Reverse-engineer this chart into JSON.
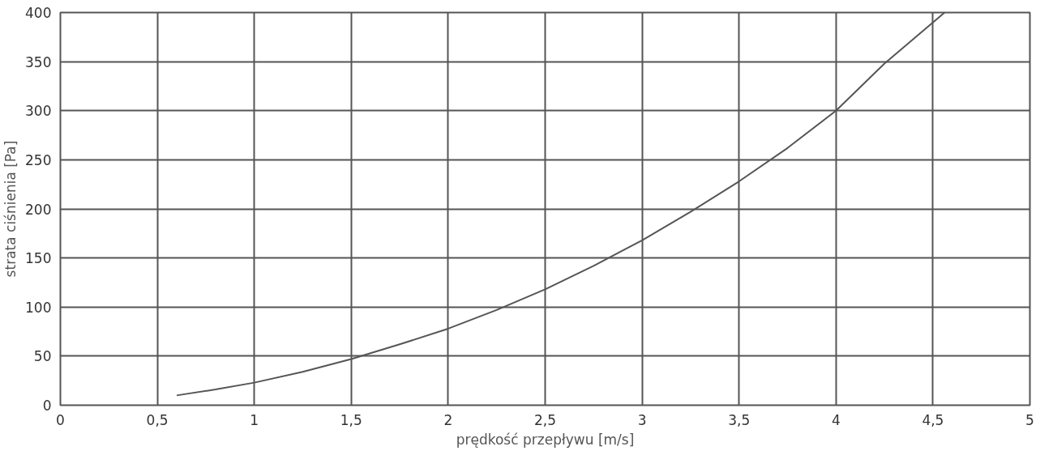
{
  "chart_data": {
    "type": "line",
    "xlabel": "prędkość przepływu [m/s]",
    "ylabel": "strata ciśnienia [Pa]",
    "x": [
      0.6,
      0.8,
      1,
      1.25,
      1.5,
      1.75,
      2,
      2.25,
      2.5,
      2.75,
      3,
      3.25,
      3.5,
      3.75,
      4,
      4.25,
      4.56
    ],
    "series": [
      {
        "color": "#555555",
        "values": [
          10,
          16,
          23,
          34,
          47,
          62,
          78,
          97,
          118,
          142,
          168,
          197,
          228,
          262,
          300,
          348,
          400
        ]
      }
    ],
    "xlim": [
      0,
      5
    ],
    "ylim": [
      0,
      400
    ],
    "xticks": [
      0,
      {
        "value": 0.5,
        "label": "0,5"
      },
      1,
      {
        "value": 1.5,
        "label": "1,5"
      },
      2,
      {
        "value": 2.5,
        "label": "2,5"
      },
      3,
      {
        "value": 3.5,
        "label": "3,5"
      },
      4,
      {
        "value": 4.5,
        "label": "4,5"
      },
      5
    ],
    "yticks": [
      0,
      50,
      100,
      150,
      200,
      250,
      300,
      350,
      400
    ],
    "grid": true,
    "marker": "none",
    "line_style": "solid"
  }
}
